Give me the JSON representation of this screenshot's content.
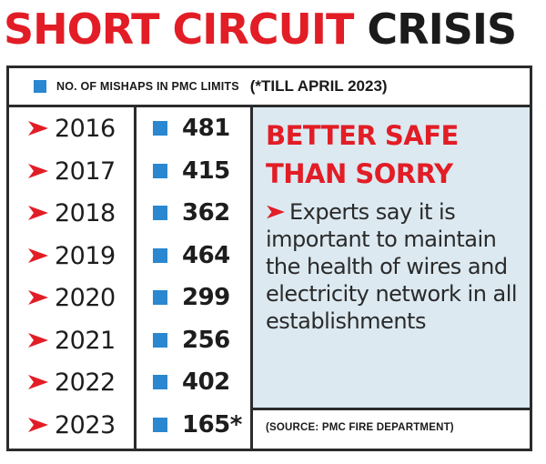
{
  "title": {
    "part1": "SHORT CIRCUIT",
    "part2": "CRISIS"
  },
  "legend": {
    "label": "NO. OF MISHAPS IN PMC LIMITS",
    "note": "(*TILL APRIL 2023)"
  },
  "colors": {
    "accent_red": "#e21d26",
    "series_blue": "#2a87d0",
    "panel_bg": "#dce9f1",
    "text_dark": "#1b1b1b"
  },
  "icons": {
    "bullet": "arrow-bullet-icon",
    "marker": "square-marker-icon"
  },
  "chart_data": {
    "type": "table",
    "title": "SHORT CIRCUIT CRISIS",
    "series": [
      {
        "name": "NO. OF MISHAPS IN PMC LIMITS",
        "values": [
          481,
          415,
          362,
          464,
          299,
          256,
          402,
          165
        ]
      }
    ],
    "categories": [
      "2016",
      "2017",
      "2018",
      "2019",
      "2020",
      "2021",
      "2022",
      "2023"
    ],
    "value_labels": [
      "481",
      "415",
      "362",
      "464",
      "299",
      "256",
      "402",
      "165*"
    ],
    "note": "(*TILL APRIL 2023)"
  },
  "panel": {
    "heading_line1": "BETTER SAFE",
    "heading_line2": "THAN SORRY",
    "body": "Experts say it is important to maintain the health of wires and electricity network in all establishments"
  },
  "source": "(SOURCE: PMC FIRE DEPARTMENT)"
}
